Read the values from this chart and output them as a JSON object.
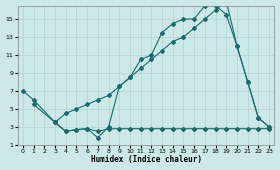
{
  "xlabel": "Humidex (Indice chaleur)",
  "bg_color": "#cce8e8",
  "grid_color": "#b8d4d4",
  "line_color": "#1a6b6b",
  "line1_x": [
    0,
    1,
    3,
    4,
    5,
    6,
    7,
    8,
    9,
    10,
    11,
    12,
    13,
    14,
    15,
    16,
    17,
    18,
    19,
    20,
    21,
    22,
    23
  ],
  "line1_y": [
    7.0,
    6.0,
    3.5,
    2.5,
    2.7,
    2.8,
    1.8,
    3.0,
    7.5,
    8.5,
    10.5,
    11.0,
    13.5,
    14.5,
    15.0,
    15.0,
    16.5,
    16.5,
    15.5,
    12.0,
    8.0,
    4.0,
    3.0
  ],
  "line2_x": [
    3,
    4,
    5,
    6,
    7,
    8,
    9,
    10,
    11,
    12,
    13,
    14,
    15,
    16,
    17,
    18,
    19,
    20,
    21,
    22,
    23
  ],
  "line2_y": [
    3.5,
    2.5,
    2.7,
    2.8,
    2.5,
    2.8,
    2.8,
    2.8,
    2.8,
    2.8,
    2.8,
    2.8,
    2.8,
    2.8,
    2.8,
    2.8,
    2.8,
    2.8,
    2.8,
    2.8,
    2.8
  ],
  "line3_x": [
    1,
    3,
    4,
    5,
    6,
    7,
    8,
    9,
    10,
    11,
    12,
    13,
    14,
    15,
    16,
    17,
    18,
    19,
    20,
    21,
    22,
    23
  ],
  "line3_y": [
    5.5,
    3.5,
    4.5,
    5.0,
    5.5,
    6.0,
    6.5,
    7.5,
    8.5,
    9.5,
    10.5,
    11.5,
    12.5,
    13.0,
    14.0,
    15.0,
    16.0,
    17.0,
    12.0,
    8.0,
    4.0,
    3.0
  ],
  "xlim": [
    -0.5,
    23.5
  ],
  "ylim": [
    1,
    16.5
  ],
  "yticks": [
    1,
    3,
    5,
    7,
    9,
    11,
    13,
    15
  ],
  "xticks": [
    0,
    1,
    2,
    3,
    4,
    5,
    6,
    7,
    8,
    9,
    10,
    11,
    12,
    13,
    14,
    15,
    16,
    17,
    18,
    19,
    20,
    21,
    22,
    23
  ]
}
